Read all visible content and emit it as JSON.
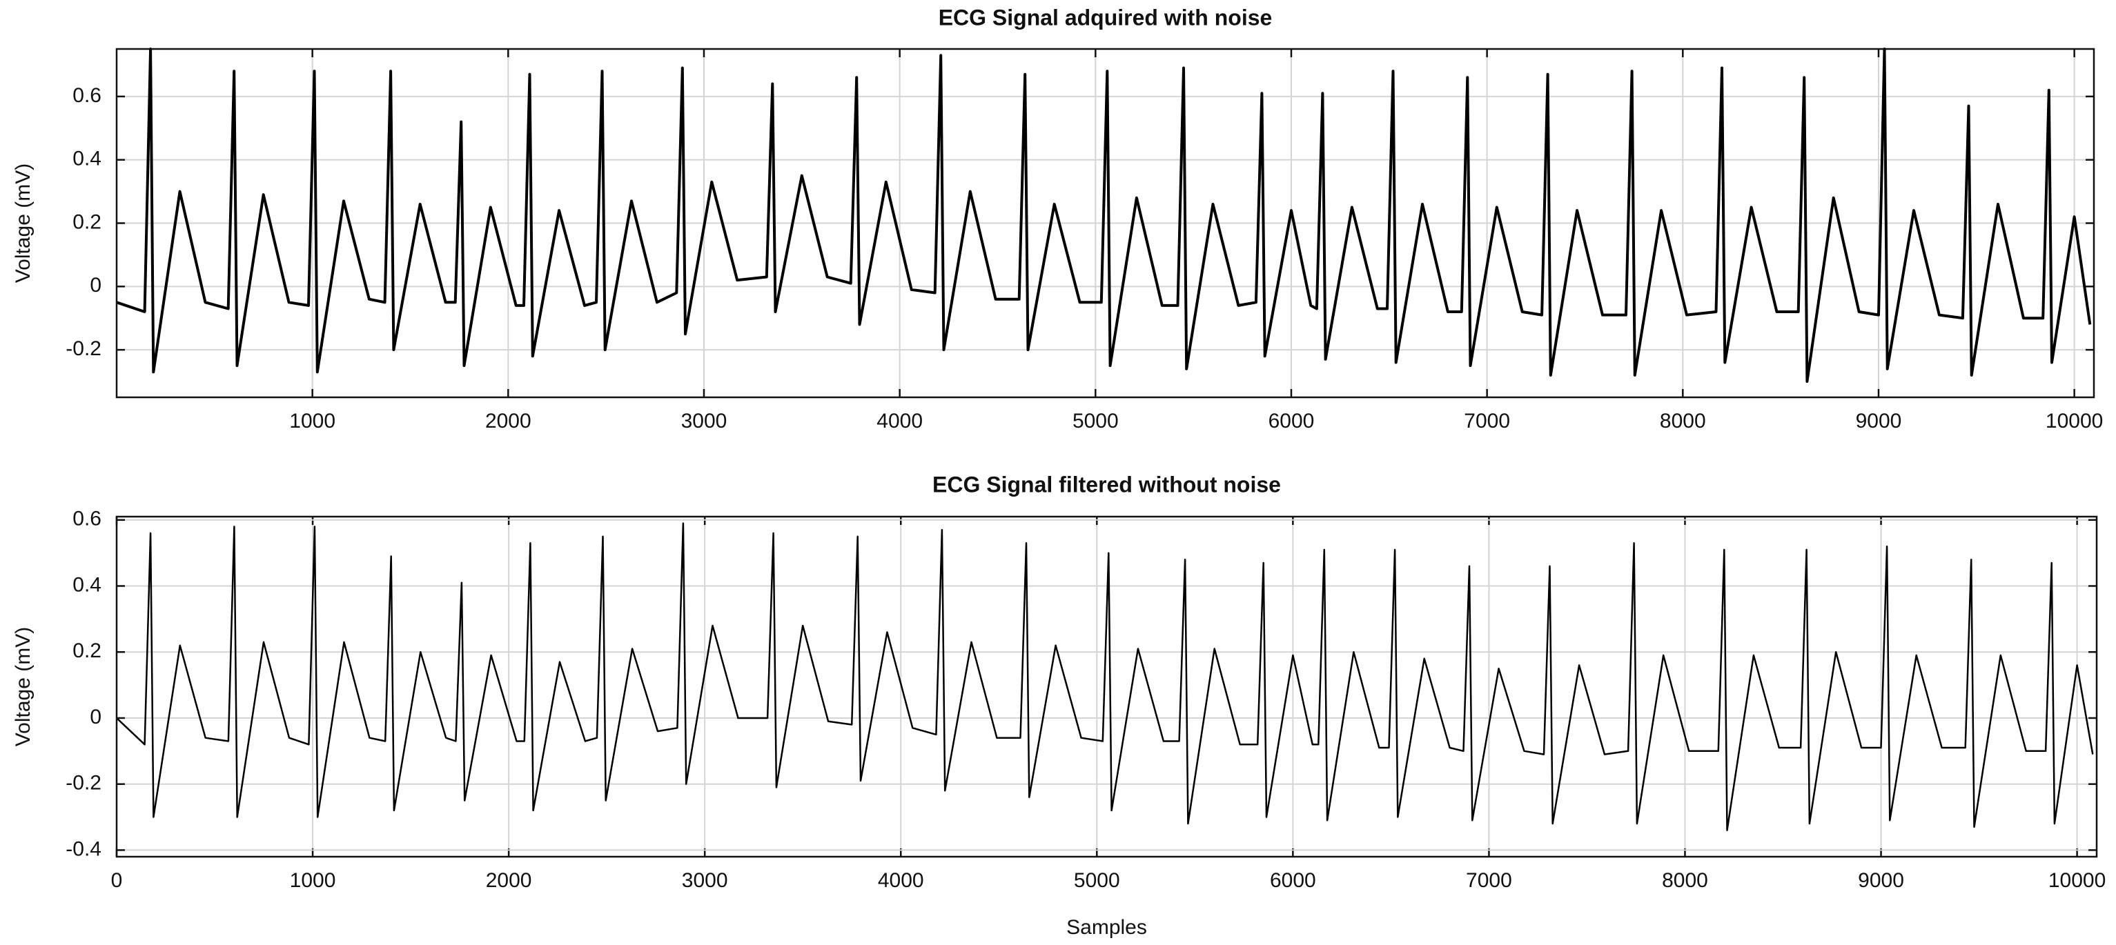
{
  "chart_data": [
    {
      "type": "line",
      "title": "ECG Signal adquired with noise",
      "ylabel": "Voltage (mV)",
      "xlim": [
        0,
        10100
      ],
      "ylim": [
        -0.35,
        0.75
      ],
      "xticks": [
        1000,
        2000,
        3000,
        4000,
        5000,
        6000,
        7000,
        8000,
        9000,
        10000
      ],
      "yticks": [
        -0.2,
        0,
        0.2,
        0.4,
        0.6
      ],
      "grid": true,
      "x": [
        0,
        143,
        173,
        188,
        323,
        453,
        570,
        600,
        615,
        750,
        880,
        980,
        1010,
        1025,
        1160,
        1290,
        1370,
        1400,
        1415,
        1550,
        1680,
        1730,
        1760,
        1775,
        1910,
        2040,
        2080,
        2110,
        2125,
        2260,
        2390,
        2450,
        2480,
        2495,
        2630,
        2760,
        2860,
        2890,
        2905,
        3040,
        3170,
        3320,
        3350,
        3365,
        3500,
        3630,
        3750,
        3780,
        3795,
        3930,
        4060,
        4180,
        4210,
        4225,
        4360,
        4490,
        4610,
        4640,
        4655,
        4790,
        4920,
        5030,
        5060,
        5075,
        5210,
        5340,
        5420,
        5450,
        5465,
        5600,
        5730,
        5820,
        5850,
        5865,
        6000,
        6100,
        6130,
        6160,
        6175,
        6310,
        6440,
        6490,
        6520,
        6535,
        6670,
        6800,
        6870,
        6900,
        6915,
        7050,
        7180,
        7280,
        7310,
        7325,
        7460,
        7590,
        7710,
        7740,
        7755,
        7890,
        8020,
        8170,
        8200,
        8215,
        8350,
        8480,
        8590,
        8620,
        8635,
        8770,
        8900,
        9000,
        9030,
        9045,
        9180,
        9310,
        9430,
        9460,
        9475,
        9610,
        9740,
        9840,
        9870,
        9885,
        10000,
        10080
      ],
      "series": [
        {
          "color": "#000000",
          "values": [
            -0.05,
            -0.08,
            0.75,
            -0.27,
            0.3,
            -0.05,
            -0.07,
            0.68,
            -0.25,
            0.29,
            -0.05,
            -0.06,
            0.68,
            -0.27,
            0.27,
            -0.04,
            -0.05,
            0.68,
            -0.2,
            0.26,
            -0.05,
            -0.05,
            0.52,
            -0.25,
            0.25,
            -0.06,
            -0.06,
            0.67,
            -0.22,
            0.24,
            -0.06,
            -0.05,
            0.68,
            -0.2,
            0.27,
            -0.05,
            -0.02,
            0.69,
            -0.15,
            0.33,
            0.02,
            0.03,
            0.64,
            -0.08,
            0.35,
            0.03,
            0.01,
            0.66,
            -0.12,
            0.33,
            -0.01,
            -0.02,
            0.73,
            -0.2,
            0.3,
            -0.04,
            -0.04,
            0.67,
            -0.2,
            0.26,
            -0.05,
            -0.05,
            0.68,
            -0.25,
            0.28,
            -0.06,
            -0.06,
            0.69,
            -0.26,
            0.26,
            -0.06,
            -0.05,
            0.61,
            -0.22,
            0.24,
            -0.06,
            -0.07,
            0.61,
            -0.23,
            0.25,
            -0.07,
            -0.07,
            0.68,
            -0.24,
            0.26,
            -0.08,
            -0.08,
            0.66,
            -0.25,
            0.25,
            -0.08,
            -0.09,
            0.67,
            -0.28,
            0.24,
            -0.09,
            -0.09,
            0.68,
            -0.28,
            0.24,
            -0.09,
            -0.08,
            0.69,
            -0.24,
            0.25,
            -0.08,
            -0.08,
            0.66,
            -0.3,
            0.28,
            -0.08,
            -0.09,
            0.75,
            -0.26,
            0.24,
            -0.09,
            -0.1,
            0.57,
            -0.28,
            0.26,
            -0.1,
            -0.1,
            0.62,
            -0.24,
            0.22,
            -0.12
          ]
        }
      ]
    },
    {
      "type": "line",
      "title": "ECG Signal filtered without noise",
      "ylabel": "Voltage (mV)",
      "xlabel": "Samples",
      "xlim": [
        0,
        10100
      ],
      "ylim": [
        -0.42,
        0.61
      ],
      "xticks": [
        0,
        1000,
        2000,
        3000,
        4000,
        5000,
        6000,
        7000,
        8000,
        9000,
        10000
      ],
      "yticks": [
        -0.4,
        -0.2,
        0,
        0.2,
        0.4,
        0.6
      ],
      "grid": true,
      "x": [
        0,
        143,
        173,
        188,
        323,
        453,
        570,
        600,
        615,
        750,
        880,
        980,
        1010,
        1025,
        1160,
        1290,
        1370,
        1400,
        1415,
        1550,
        1680,
        1730,
        1760,
        1775,
        1910,
        2040,
        2080,
        2110,
        2125,
        2260,
        2390,
        2450,
        2480,
        2495,
        2630,
        2760,
        2860,
        2890,
        2905,
        3040,
        3170,
        3320,
        3350,
        3365,
        3500,
        3630,
        3750,
        3780,
        3795,
        3930,
        4060,
        4180,
        4210,
        4225,
        4360,
        4490,
        4610,
        4640,
        4655,
        4790,
        4920,
        5030,
        5060,
        5075,
        5210,
        5340,
        5420,
        5450,
        5465,
        5600,
        5730,
        5820,
        5850,
        5865,
        6000,
        6100,
        6130,
        6160,
        6175,
        6310,
        6440,
        6490,
        6520,
        6535,
        6670,
        6800,
        6870,
        6900,
        6915,
        7050,
        7180,
        7280,
        7310,
        7325,
        7460,
        7590,
        7710,
        7740,
        7755,
        7890,
        8020,
        8170,
        8200,
        8215,
        8350,
        8480,
        8590,
        8620,
        8635,
        8770,
        8900,
        9000,
        9030,
        9045,
        9180,
        9310,
        9430,
        9460,
        9475,
        9610,
        9740,
        9840,
        9870,
        9885,
        10000,
        10080
      ],
      "series": [
        {
          "color": "#000000",
          "values": [
            0.0,
            -0.08,
            0.56,
            -0.3,
            0.22,
            -0.06,
            -0.07,
            0.58,
            -0.3,
            0.23,
            -0.06,
            -0.08,
            0.58,
            -0.3,
            0.23,
            -0.06,
            -0.07,
            0.49,
            -0.28,
            0.2,
            -0.06,
            -0.07,
            0.41,
            -0.25,
            0.19,
            -0.07,
            -0.07,
            0.53,
            -0.28,
            0.17,
            -0.07,
            -0.06,
            0.55,
            -0.25,
            0.21,
            -0.04,
            -0.03,
            0.59,
            -0.2,
            0.28,
            0.0,
            0.0,
            0.56,
            -0.21,
            0.28,
            -0.01,
            -0.02,
            0.55,
            -0.19,
            0.26,
            -0.03,
            -0.05,
            0.57,
            -0.22,
            0.23,
            -0.06,
            -0.06,
            0.53,
            -0.24,
            0.22,
            -0.06,
            -0.07,
            0.5,
            -0.28,
            0.21,
            -0.07,
            -0.07,
            0.48,
            -0.32,
            0.21,
            -0.08,
            -0.08,
            0.47,
            -0.3,
            0.19,
            -0.08,
            -0.08,
            0.51,
            -0.31,
            0.2,
            -0.09,
            -0.09,
            0.51,
            -0.3,
            0.18,
            -0.09,
            -0.1,
            0.46,
            -0.31,
            0.15,
            -0.1,
            -0.11,
            0.46,
            -0.32,
            0.16,
            -0.11,
            -0.1,
            0.53,
            -0.32,
            0.19,
            -0.1,
            -0.1,
            0.51,
            -0.34,
            0.19,
            -0.09,
            -0.09,
            0.51,
            -0.32,
            0.2,
            -0.09,
            -0.09,
            0.52,
            -0.31,
            0.19,
            -0.09,
            -0.09,
            0.48,
            -0.33,
            0.19,
            -0.1,
            -0.1,
            0.47,
            -0.32,
            0.16,
            -0.11
          ]
        }
      ]
    }
  ]
}
